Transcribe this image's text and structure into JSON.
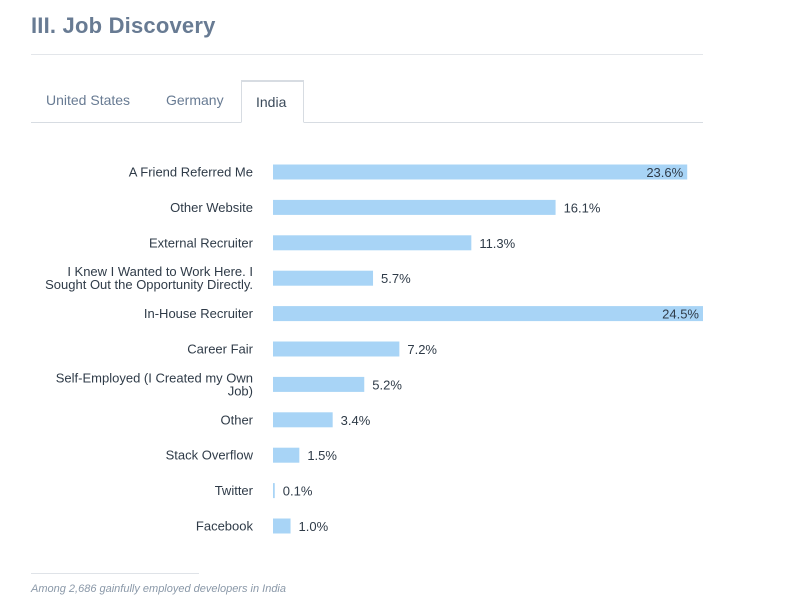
{
  "page": {
    "title": "III. Job Discovery",
    "tabs": [
      {
        "label": "United States",
        "active": false
      },
      {
        "label": "Germany",
        "active": false
      },
      {
        "label": "India",
        "active": true
      }
    ],
    "footnote": "Among 2,686 gainfully employed developers in India"
  },
  "colors": {
    "bar": "#a8d4f6",
    "label": "#2f3b48",
    "title": "#687b93"
  },
  "chart_data": {
    "type": "bar",
    "orientation": "horizontal",
    "categories": [
      "A Friend Referred Me",
      "Other Website",
      "External Recruiter",
      "I Knew I Wanted to Work Here. I Sought Out the Opportunity Directly.",
      "In-House Recruiter",
      "Career Fair",
      "Self-Employed (I Created my Own Job)",
      "Other",
      "Stack Overflow",
      "Twitter",
      "Facebook"
    ],
    "category_lines": [
      [
        "A Friend Referred Me"
      ],
      [
        "Other Website"
      ],
      [
        "External Recruiter"
      ],
      [
        "I Knew I Wanted to Work Here. I",
        "Sought Out the Opportunity Directly."
      ],
      [
        "In-House Recruiter"
      ],
      [
        "Career Fair"
      ],
      [
        "Self-Employed (I Created my Own",
        "Job)"
      ],
      [
        "Other"
      ],
      [
        "Stack Overflow"
      ],
      [
        "Twitter"
      ],
      [
        "Facebook"
      ]
    ],
    "values": [
      23.6,
      16.1,
      11.3,
      5.7,
      24.5,
      7.2,
      5.2,
      3.4,
      1.5,
      0.1,
      1.0
    ],
    "value_labels": [
      "23.6%",
      "16.1%",
      "11.3%",
      "5.7%",
      "24.5%",
      "7.2%",
      "5.2%",
      "3.4%",
      "1.5%",
      "0.1%",
      "1.0%"
    ],
    "xlim": [
      0,
      24.5
    ],
    "unit": "%",
    "grid": false
  }
}
